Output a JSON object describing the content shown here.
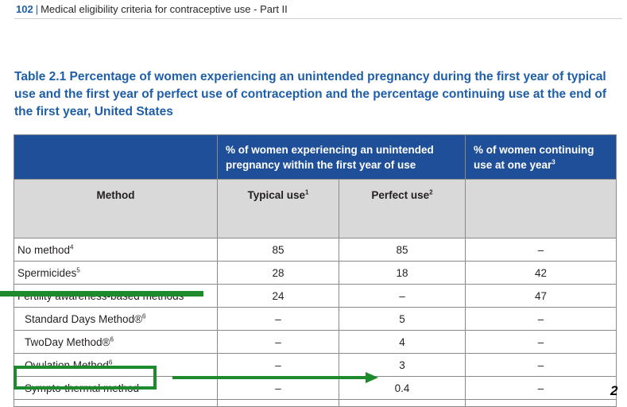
{
  "header": {
    "page_number": "102",
    "separator": "|",
    "title": "Medical eligibility criteria for contraceptive use - Part II"
  },
  "caption": "Table 2.1 Percentage of women experiencing an unintended pregnancy during the first year of typical use and the first year of perfect use of contraception and the percentage continuing use at the end of the first year, United States",
  "table": {
    "group_header": "% of women experiencing an unintended pregnancy within the first year of use",
    "continuing_header": "% of women continuing use at one year",
    "continuing_header_sup": "3",
    "method_header": "Method",
    "typical_header": "Typical use",
    "typical_header_sup": "1",
    "perfect_header": "Perfect use",
    "perfect_header_sup": "2",
    "rows": [
      {
        "method": "No method",
        "sup": "4",
        "typical": "85",
        "perfect": "85",
        "continuing": "–"
      },
      {
        "method": "Spermicides",
        "sup": "5",
        "typical": "28",
        "perfect": "18",
        "continuing": "42"
      },
      {
        "method": "Fertility awareness-based methods",
        "sup": "",
        "typical": "24",
        "perfect": "–",
        "continuing": "47"
      },
      {
        "method": "Standard Days Method®",
        "sup": "6",
        "typical": "–",
        "perfect": "5",
        "continuing": "–"
      },
      {
        "method": "TwoDay Method®",
        "sup": "6",
        "typical": "–",
        "perfect": "4",
        "continuing": "–"
      },
      {
        "method": "Ovulation Method",
        "sup": "6",
        "typical": "–",
        "perfect": "3",
        "continuing": "–"
      },
      {
        "method": "Sympto-thermal method",
        "sup": "",
        "typical": "–",
        "perfect": "0.4",
        "continuing": "–"
      }
    ]
  },
  "annotation": {
    "color": "#1d8a2e",
    "corner_mark": "2"
  }
}
